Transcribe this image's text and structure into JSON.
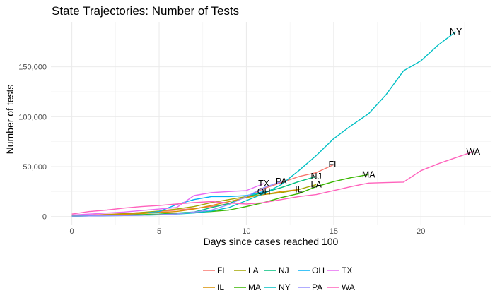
{
  "chart_data": {
    "type": "line",
    "title": "State Trajectories: Number of Tests",
    "xlabel": "Days since cases reached 100",
    "ylabel": "Number of tests",
    "xlim": [
      -1.2,
      24
    ],
    "ylim": [
      -8000,
      195000
    ],
    "x_ticks": [
      0,
      5,
      10,
      15,
      20
    ],
    "x_tick_labels": [
      "0",
      "5",
      "10",
      "15",
      "20"
    ],
    "y_ticks": [
      0,
      50000,
      100000,
      150000
    ],
    "y_tick_labels": [
      "0",
      "50,000",
      "100,000",
      "150,000"
    ],
    "grid": true,
    "legend_position": "bottom",
    "series": [
      {
        "name": "FL",
        "color": "#F8766D",
        "label": "FL",
        "x": [
          0,
          1,
          2,
          3,
          4,
          5,
          6,
          7,
          8,
          9,
          10,
          11,
          12,
          13,
          14,
          15
        ],
        "y": [
          1000,
          1500,
          2200,
          3000,
          4000,
          5000,
          6500,
          8000,
          10000,
          13000,
          20000,
          28000,
          34000,
          40000,
          44000,
          52000
        ]
      },
      {
        "name": "LA",
        "color": "#A3A500",
        "label": "LA",
        "x": [
          0,
          1,
          2,
          3,
          4,
          5,
          6,
          7,
          8,
          9,
          10,
          11,
          12,
          13,
          14
        ],
        "y": [
          500,
          1000,
          1800,
          2800,
          4000,
          5500,
          7500,
          10000,
          14000,
          17000,
          20000,
          22000,
          24000,
          27000,
          32000
        ]
      },
      {
        "name": "NJ",
        "color": "#00BF7D",
        "label": "NJ",
        "x": [
          0,
          1,
          2,
          3,
          4,
          5,
          6,
          7,
          8,
          9,
          10,
          11,
          12,
          13,
          14
        ],
        "y": [
          300,
          600,
          1000,
          1500,
          2000,
          2500,
          3500,
          4500,
          9000,
          13000,
          20000,
          24000,
          29000,
          35000,
          40000
        ]
      },
      {
        "name": "OH",
        "color": "#00B0F6",
        "label": "OH",
        "x": [
          0,
          1,
          2,
          3,
          4,
          5,
          6,
          7,
          8,
          9,
          10,
          11
        ],
        "y": [
          500,
          800,
          1200,
          1800,
          3000,
          5000,
          12000,
          17000,
          20000,
          20000,
          21000,
          25000
        ]
      },
      {
        "name": "TX",
        "color": "#E76BF3",
        "label": "TX",
        "x": [
          0,
          1,
          2,
          3,
          4,
          5,
          6,
          7,
          8,
          9,
          10,
          11
        ],
        "y": [
          1500,
          2500,
          3500,
          4500,
          6000,
          7500,
          9000,
          21000,
          24000,
          25000,
          26000,
          33000
        ]
      },
      {
        "name": "IL",
        "color": "#D89000",
        "label": "IL",
        "x": [
          0,
          1,
          2,
          3,
          4,
          5,
          6,
          7,
          8,
          9,
          10,
          11,
          12,
          13
        ],
        "y": [
          500,
          1000,
          1500,
          2200,
          3000,
          4000,
          5000,
          7500,
          11000,
          15000,
          19000,
          22000,
          25000,
          27000
        ]
      },
      {
        "name": "MA",
        "color": "#39B600",
        "label": "MA",
        "x": [
          0,
          1,
          2,
          3,
          4,
          5,
          6,
          7,
          8,
          9,
          10,
          11,
          12,
          13,
          14,
          15,
          16,
          17
        ],
        "y": [
          400,
          700,
          1000,
          1300,
          1700,
          2200,
          3200,
          4000,
          5000,
          6500,
          10000,
          14000,
          19000,
          23000,
          30000,
          35000,
          39000,
          42000
        ]
      },
      {
        "name": "NY",
        "color": "#00BFC4",
        "label": "NY",
        "x": [
          0,
          1,
          2,
          3,
          4,
          5,
          6,
          7,
          8,
          9,
          10,
          11,
          12,
          13,
          14,
          15,
          16,
          17,
          18,
          19,
          20,
          21,
          22
        ],
        "y": [
          400,
          600,
          800,
          1000,
          1300,
          1700,
          2500,
          3500,
          5500,
          9000,
          16000,
          23000,
          32000,
          46000,
          61000,
          78000,
          91000,
          103000,
          122000,
          146000,
          156000,
          172000,
          185000
        ]
      },
      {
        "name": "PA",
        "color": "#9590FF",
        "label": "PA",
        "x": [
          0,
          1,
          2,
          3,
          4,
          5,
          6,
          7,
          8,
          9,
          10,
          11,
          12
        ],
        "y": [
          400,
          600,
          800,
          1000,
          1300,
          1800,
          2600,
          4500,
          6500,
          12000,
          20000,
          29000,
          35000
        ]
      },
      {
        "name": "WA",
        "color": "#FF62BC",
        "label": "WA",
        "x": [
          0,
          1,
          2,
          3,
          4,
          5,
          6,
          7,
          8,
          9,
          10,
          11,
          12,
          13,
          14,
          15,
          16,
          17,
          18,
          19,
          20,
          21,
          22,
          23
        ],
        "y": [
          2500,
          5000,
          6500,
          8500,
          10000,
          11000,
          12500,
          14000,
          15000,
          13500,
          12500,
          14000,
          17000,
          20000,
          22000,
          26000,
          30000,
          33500,
          34000,
          34500,
          46000,
          53000,
          59000,
          65000
        ]
      }
    ],
    "legend_rows": [
      [
        "FL",
        "LA",
        "NJ",
        "OH",
        "TX"
      ],
      [
        "IL",
        "MA",
        "NY",
        "PA",
        "WA"
      ]
    ]
  }
}
